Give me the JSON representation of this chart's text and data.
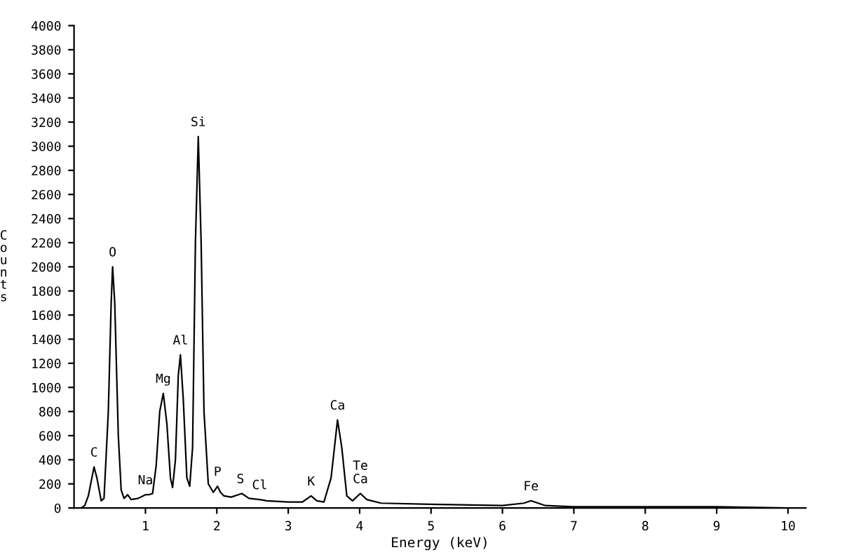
{
  "chart_data": {
    "type": "line",
    "xlabel": "Energy (keV)",
    "ylabel": "Counts",
    "xlim": [
      0,
      10.25
    ],
    "ylim": [
      0,
      4000
    ],
    "xticks": [
      1,
      2,
      3,
      4,
      5,
      6,
      7,
      8,
      9,
      10
    ],
    "yticks": [
      0,
      200,
      400,
      600,
      800,
      1000,
      1200,
      1400,
      1600,
      1800,
      2000,
      2200,
      2400,
      2600,
      2800,
      3000,
      3200,
      3400,
      3600,
      3800,
      4000
    ],
    "grid": false,
    "marker": "none",
    "line_style": "solid",
    "series": [
      {
        "color": "#000000",
        "x": [
          0.1,
          0.15,
          0.2,
          0.25,
          0.28,
          0.32,
          0.38,
          0.42,
          0.48,
          0.52,
          0.54,
          0.57,
          0.62,
          0.66,
          0.7,
          0.75,
          0.8,
          0.9,
          1.0,
          1.05,
          1.1,
          1.15,
          1.2,
          1.25,
          1.3,
          1.35,
          1.38,
          1.42,
          1.46,
          1.49,
          1.53,
          1.58,
          1.62,
          1.66,
          1.7,
          1.74,
          1.78,
          1.82,
          1.88,
          1.95,
          2.01,
          2.05,
          2.1,
          2.2,
          2.3,
          2.35,
          2.45,
          2.6,
          2.7,
          3.0,
          3.2,
          3.32,
          3.4,
          3.5,
          3.6,
          3.69,
          3.75,
          3.82,
          3.9,
          4.01,
          4.1,
          4.3,
          5.0,
          6.0,
          6.3,
          6.4,
          6.5,
          6.6,
          7.0,
          8.0,
          9.0,
          10.0,
          10.2
        ],
        "values": [
          0,
          20,
          100,
          250,
          340,
          250,
          60,
          80,
          800,
          1700,
          2000,
          1700,
          600,
          150,
          80,
          110,
          70,
          80,
          110,
          110,
          120,
          350,
          800,
          950,
          700,
          250,
          170,
          400,
          1100,
          1270,
          900,
          250,
          180,
          500,
          2200,
          3080,
          2200,
          800,
          200,
          130,
          180,
          130,
          100,
          90,
          110,
          120,
          80,
          70,
          60,
          50,
          50,
          100,
          60,
          50,
          250,
          730,
          500,
          100,
          60,
          120,
          70,
          40,
          30,
          20,
          40,
          60,
          40,
          20,
          10,
          10,
          10,
          0,
          0
        ]
      }
    ],
    "annotations": [
      {
        "text": "C",
        "x": 0.28,
        "y": 340
      },
      {
        "text": "O",
        "x": 0.54,
        "y": 2000
      },
      {
        "text": "Na",
        "x": 1.0,
        "y": 110
      },
      {
        "text": "Mg",
        "x": 1.25,
        "y": 950
      },
      {
        "text": "Al",
        "x": 1.49,
        "y": 1270
      },
      {
        "text": "Si",
        "x": 1.74,
        "y": 3080
      },
      {
        "text": "P",
        "x": 2.01,
        "y": 180
      },
      {
        "text": "S",
        "x": 2.33,
        "y": 120
      },
      {
        "text": "Cl",
        "x": 2.6,
        "y": 70
      },
      {
        "text": "K",
        "x": 3.32,
        "y": 100
      },
      {
        "text": "Ca",
        "x": 3.69,
        "y": 730
      },
      {
        "text": "Te\nCa",
        "x": 4.01,
        "y": 120
      },
      {
        "text": "Fe",
        "x": 6.4,
        "y": 60
      }
    ]
  }
}
